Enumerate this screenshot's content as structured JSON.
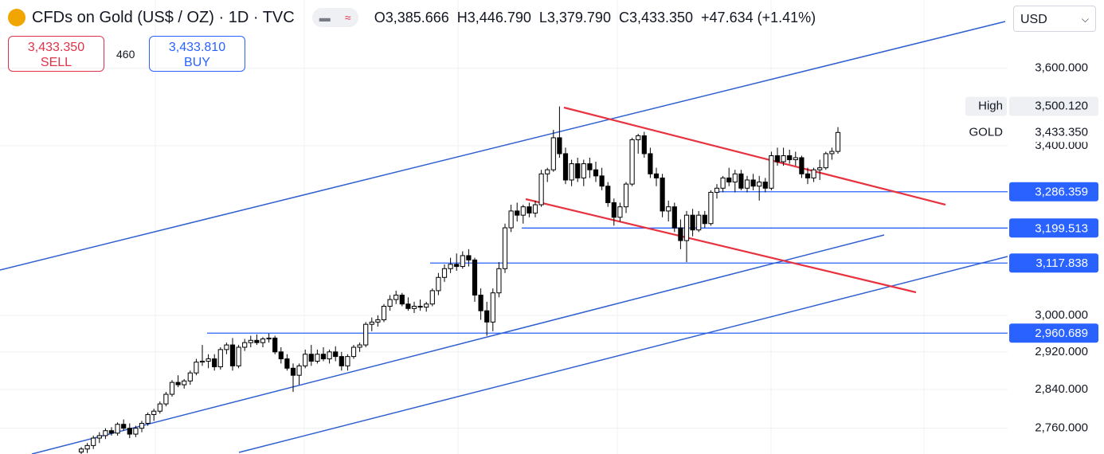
{
  "header": {
    "title": "CFDs on Gold (US$ / OZ) · 1D · TVC",
    "legend": [
      {
        "label": "O",
        "value": "3,385.666"
      },
      {
        "label": "H",
        "value": "3,446.790"
      },
      {
        "label": "L",
        "value": "3,379.790"
      },
      {
        "label": "C",
        "value": "3,433.350"
      }
    ],
    "change": "+47.634 (+1.41%)",
    "sell": {
      "price": "3,433.350",
      "label": "SELL"
    },
    "spread": "460",
    "buy": {
      "price": "3,433.810",
      "label": "BUY"
    },
    "currency": "USD"
  },
  "chart_data": {
    "type": "candlestick",
    "log_scale": true,
    "grid": true,
    "up_color": "#ffffff",
    "down_color": "#000000",
    "wick_color": "#000000",
    "ylim": [
      2708,
      3786
    ],
    "yticks": [
      {
        "value": 3600,
        "label": "3,600.000"
      },
      {
        "value": 3400,
        "label": "3,400.000"
      },
      {
        "value": 3000,
        "label": "3,000.000"
      },
      {
        "value": 2920,
        "label": "2,920.000"
      },
      {
        "value": 2840,
        "label": "2,840.000"
      },
      {
        "value": 2760,
        "label": "2,760.000"
      }
    ],
    "horizontal_lines": [
      {
        "value": 3286.359,
        "label": "3,286.359"
      },
      {
        "value": 3199.513,
        "label": "3,199.513"
      },
      {
        "value": 3117.838,
        "label": "3,117.838"
      },
      {
        "value": 2960.689,
        "label": "2,960.689"
      }
    ],
    "line_color": "#2962ff",
    "price_marks": [
      {
        "name": "High",
        "value": 3500.12,
        "label": "3,500.120"
      },
      {
        "name": "GOLD",
        "value": 3433.35,
        "label": "3,433.350"
      }
    ],
    "ohlc": [
      [
        2712,
        2722,
        2705,
        2718
      ],
      [
        2718,
        2730,
        2710,
        2725
      ],
      [
        2725,
        2745,
        2718,
        2740
      ],
      [
        2740,
        2752,
        2730,
        2745
      ],
      [
        2745,
        2760,
        2738,
        2755
      ],
      [
        2755,
        2762,
        2745,
        2750
      ],
      [
        2750,
        2772,
        2745,
        2768
      ],
      [
        2768,
        2778,
        2755,
        2760
      ],
      [
        2760,
        2770,
        2740,
        2748
      ],
      [
        2748,
        2765,
        2742,
        2760
      ],
      [
        2760,
        2775,
        2752,
        2770
      ],
      [
        2770,
        2792,
        2765,
        2788
      ],
      [
        2788,
        2800,
        2775,
        2795
      ],
      [
        2795,
        2815,
        2790,
        2810
      ],
      [
        2810,
        2835,
        2805,
        2830
      ],
      [
        2830,
        2860,
        2825,
        2855
      ],
      [
        2855,
        2870,
        2845,
        2850
      ],
      [
        2850,
        2862,
        2842,
        2858
      ],
      [
        2858,
        2880,
        2850,
        2875
      ],
      [
        2875,
        2905,
        2870,
        2898
      ],
      [
        2898,
        2935,
        2890,
        2900
      ],
      [
        2900,
        2915,
        2885,
        2905
      ],
      [
        2905,
        2915,
        2880,
        2888
      ],
      [
        2888,
        2930,
        2882,
        2925
      ],
      [
        2925,
        2940,
        2915,
        2935
      ],
      [
        2935,
        2950,
        2880,
        2890
      ],
      [
        2890,
        2935,
        2885,
        2930
      ],
      [
        2930,
        2948,
        2922,
        2940
      ],
      [
        2940,
        2955,
        2930,
        2945
      ],
      [
        2945,
        2958,
        2935,
        2940
      ],
      [
        2940,
        2952,
        2930,
        2948
      ],
      [
        2948,
        2960,
        2940,
        2950
      ],
      [
        2950,
        2955,
        2915,
        2920
      ],
      [
        2920,
        2930,
        2895,
        2905
      ],
      [
        2905,
        2915,
        2880,
        2885
      ],
      [
        2885,
        2895,
        2835,
        2870
      ],
      [
        2870,
        2895,
        2850,
        2890
      ],
      [
        2890,
        2925,
        2885,
        2915
      ],
      [
        2915,
        2935,
        2890,
        2900
      ],
      [
        2900,
        2925,
        2895,
        2915
      ],
      [
        2915,
        2930,
        2900,
        2905
      ],
      [
        2905,
        2925,
        2895,
        2920
      ],
      [
        2920,
        2932,
        2900,
        2910
      ],
      [
        2910,
        2920,
        2880,
        2890
      ],
      [
        2890,
        2915,
        2880,
        2910
      ],
      [
        2910,
        2935,
        2905,
        2930
      ],
      [
        2930,
        2940,
        2920,
        2935
      ],
      [
        2935,
        2985,
        2930,
        2980
      ],
      [
        2980,
        2995,
        2965,
        2985
      ],
      [
        2985,
        3000,
        2975,
        2990
      ],
      [
        2990,
        3025,
        2985,
        3020
      ],
      [
        3020,
        3045,
        3010,
        3035
      ],
      [
        3035,
        3055,
        3025,
        3045
      ],
      [
        3045,
        3050,
        3020,
        3025
      ],
      [
        3025,
        3040,
        3010,
        3015
      ],
      [
        3015,
        3030,
        3005,
        3020
      ],
      [
        3020,
        3035,
        3010,
        3018
      ],
      [
        3018,
        3030,
        3008,
        3025
      ],
      [
        3025,
        3060,
        3020,
        3055
      ],
      [
        3055,
        3095,
        3045,
        3085
      ],
      [
        3085,
        3115,
        3075,
        3105
      ],
      [
        3105,
        3130,
        3095,
        3115
      ],
      [
        3115,
        3140,
        3100,
        3110
      ],
      [
        3110,
        3145,
        3105,
        3135
      ],
      [
        3135,
        3150,
        3110,
        3125
      ],
      [
        3125,
        3130,
        3030,
        3045
      ],
      [
        3045,
        3060,
        2990,
        3010
      ],
      [
        3010,
        3030,
        2955,
        2985
      ],
      [
        2985,
        3060,
        2965,
        3050
      ],
      [
        3050,
        3120,
        3040,
        3105
      ],
      [
        3105,
        3210,
        3095,
        3200
      ],
      [
        3200,
        3255,
        3190,
        3240
      ],
      [
        3240,
        3260,
        3215,
        3230
      ],
      [
        3230,
        3255,
        3210,
        3250
      ],
      [
        3250,
        3260,
        3225,
        3235
      ],
      [
        3235,
        3265,
        3225,
        3255
      ],
      [
        3255,
        3340,
        3250,
        3330
      ],
      [
        3330,
        3345,
        3310,
        3340
      ],
      [
        3340,
        3440,
        3335,
        3420
      ],
      [
        3420,
        3500,
        3370,
        3380
      ],
      [
        3380,
        3395,
        3305,
        3315
      ],
      [
        3315,
        3365,
        3300,
        3355
      ],
      [
        3355,
        3370,
        3310,
        3320
      ],
      [
        3320,
        3365,
        3300,
        3355
      ],
      [
        3355,
        3370,
        3320,
        3340
      ],
      [
        3340,
        3360,
        3310,
        3325
      ],
      [
        3325,
        3345,
        3290,
        3300
      ],
      [
        3300,
        3310,
        3250,
        3260
      ],
      [
        3260,
        3270,
        3205,
        3225
      ],
      [
        3225,
        3260,
        3215,
        3250
      ],
      [
        3250,
        3310,
        3235,
        3305
      ],
      [
        3305,
        3420,
        3300,
        3415
      ],
      [
        3415,
        3430,
        3380,
        3425
      ],
      [
        3425,
        3435,
        3370,
        3380
      ],
      [
        3380,
        3395,
        3320,
        3330
      ],
      [
        3330,
        3345,
        3300,
        3320
      ],
      [
        3320,
        3330,
        3225,
        3240
      ],
      [
        3240,
        3265,
        3215,
        3250
      ],
      [
        3250,
        3260,
        3190,
        3200
      ],
      [
        3200,
        3220,
        3150,
        3170
      ],
      [
        3170,
        3240,
        3120,
        3230
      ],
      [
        3230,
        3245,
        3180,
        3195
      ],
      [
        3195,
        3240,
        3190,
        3230
      ],
      [
        3230,
        3240,
        3200,
        3210
      ],
      [
        3210,
        3290,
        3205,
        3285
      ],
      [
        3285,
        3305,
        3270,
        3295
      ],
      [
        3295,
        3325,
        3285,
        3320
      ],
      [
        3320,
        3345,
        3300,
        3310
      ],
      [
        3310,
        3340,
        3285,
        3330
      ],
      [
        3330,
        3340,
        3290,
        3295
      ],
      [
        3295,
        3325,
        3285,
        3315
      ],
      [
        3315,
        3330,
        3290,
        3300
      ],
      [
        3300,
        3325,
        3265,
        3310
      ],
      [
        3310,
        3320,
        3285,
        3295
      ],
      [
        3295,
        3385,
        3290,
        3375
      ],
      [
        3375,
        3395,
        3350,
        3360
      ],
      [
        3360,
        3395,
        3350,
        3375
      ],
      [
        3375,
        3390,
        3355,
        3365
      ],
      [
        3365,
        3385,
        3350,
        3370
      ],
      [
        3370,
        3375,
        3320,
        3330
      ],
      [
        3330,
        3345,
        3305,
        3320
      ],
      [
        3320,
        3345,
        3310,
        3340
      ],
      [
        3340,
        3365,
        3315,
        3345
      ],
      [
        3345,
        3385,
        3340,
        3380
      ],
      [
        3380,
        3395,
        3365,
        3385.7
      ],
      [
        3385.666,
        3446.79,
        3379.79,
        3433.35
      ]
    ]
  }
}
